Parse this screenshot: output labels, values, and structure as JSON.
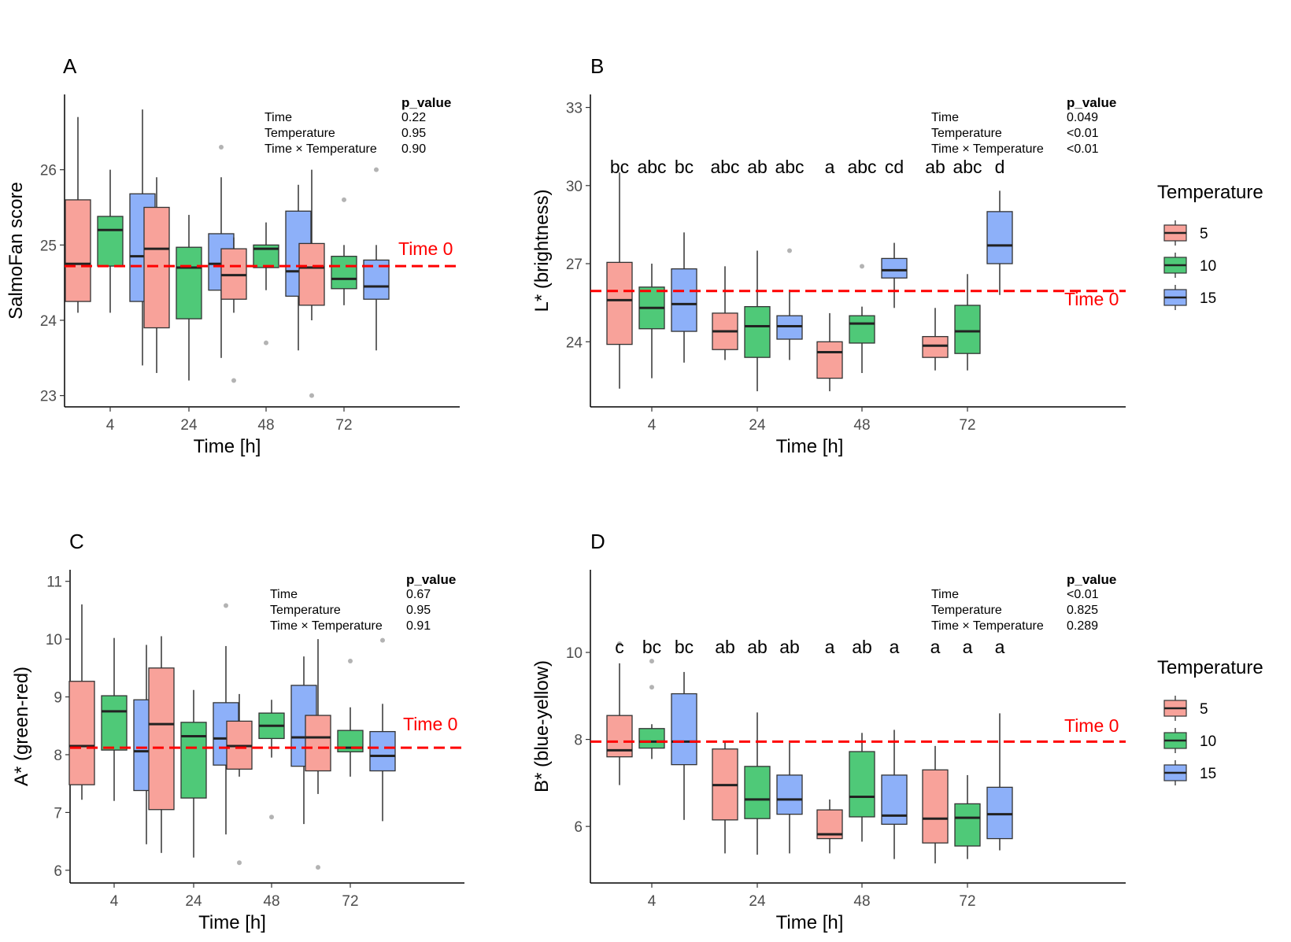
{
  "chart_data": [
    {
      "panel": "A",
      "type": "boxplot",
      "xlabel": "Time [h]",
      "ylabel": "SalmoFan score",
      "x_ticks": [
        "4",
        "24",
        "48",
        "72"
      ],
      "y_ticks": [
        23,
        24,
        25,
        26
      ],
      "ylim": [
        22.85,
        27.0
      ],
      "reference_line": {
        "label": "Time 0",
        "value": 24.72
      },
      "p_table": {
        "header": "p_value",
        "rows": [
          {
            "term": "Time",
            "p": "0.22"
          },
          {
            "term": "Temperature",
            "p": "0.95"
          },
          {
            "term": "Time × Temperature",
            "p": "0.90"
          }
        ]
      },
      "letters": [],
      "groups": [
        {
          "time": "4",
          "temp": "5",
          "lo": 24.1,
          "q1": 24.25,
          "med": 24.75,
          "q3": 25.6,
          "hi": 26.7,
          "outliers": []
        },
        {
          "time": "4",
          "temp": "10",
          "lo": 24.1,
          "q1": 24.72,
          "med": 25.2,
          "q3": 25.38,
          "hi": 26.0,
          "outliers": []
        },
        {
          "time": "4",
          "temp": "15",
          "lo": 23.4,
          "q1": 24.25,
          "med": 24.85,
          "q3": 25.68,
          "hi": 26.8,
          "outliers": []
        },
        {
          "time": "24",
          "temp": "5",
          "lo": 23.3,
          "q1": 23.9,
          "med": 24.95,
          "q3": 25.5,
          "hi": 25.9,
          "outliers": []
        },
        {
          "time": "24",
          "temp": "10",
          "lo": 23.2,
          "q1": 24.02,
          "med": 24.7,
          "q3": 24.97,
          "hi": 25.4,
          "outliers": []
        },
        {
          "time": "24",
          "temp": "15",
          "lo": 23.5,
          "q1": 24.4,
          "med": 24.75,
          "q3": 25.15,
          "hi": 25.9,
          "outliers": [
            26.3
          ]
        },
        {
          "time": "48",
          "temp": "5",
          "lo": 24.1,
          "q1": 24.28,
          "med": 24.6,
          "q3": 24.95,
          "hi": 25.1,
          "outliers": [
            23.2
          ]
        },
        {
          "time": "48",
          "temp": "10",
          "lo": 24.4,
          "q1": 24.7,
          "med": 24.95,
          "q3": 25.0,
          "hi": 25.3,
          "outliers": [
            23.7
          ]
        },
        {
          "time": "48",
          "temp": "15",
          "lo": 23.6,
          "q1": 24.32,
          "med": 24.65,
          "q3": 25.45,
          "hi": 25.8,
          "outliers": []
        },
        {
          "time": "72",
          "temp": "5",
          "lo": 24.0,
          "q1": 24.2,
          "med": 24.7,
          "q3": 25.02,
          "hi": 26.0,
          "outliers": [
            23.0
          ]
        },
        {
          "time": "72",
          "temp": "10",
          "lo": 24.2,
          "q1": 24.42,
          "med": 24.55,
          "q3": 24.85,
          "hi": 25.0,
          "outliers": [
            25.6
          ]
        },
        {
          "time": "72",
          "temp": "15",
          "lo": 23.6,
          "q1": 24.28,
          "med": 24.45,
          "q3": 24.8,
          "hi": 25.0,
          "outliers": [
            26.0
          ]
        }
      ]
    },
    {
      "panel": "B",
      "type": "boxplot",
      "xlabel": "Time [h]",
      "ylabel": "L* (brightness)",
      "x_ticks": [
        "4",
        "24",
        "48",
        "72"
      ],
      "y_ticks": [
        24,
        27,
        30,
        33
      ],
      "ylim": [
        21.5,
        33.5
      ],
      "reference_line": {
        "label": "Time 0",
        "value": 25.95
      },
      "p_table": {
        "header": "p_value",
        "rows": [
          {
            "term": "Time",
            "p": "0.049"
          },
          {
            "term": "Temperature",
            "p": "<0.01"
          },
          {
            "term": "Time × Temperature",
            "p": "<0.01"
          }
        ]
      },
      "letters": [
        "bc",
        "abc",
        "bc",
        "abc",
        "ab",
        "abc",
        "a",
        "abc",
        "cd",
        "ab",
        "abc",
        "d"
      ],
      "groups": [
        {
          "time": "4",
          "temp": "5",
          "lo": 22.2,
          "q1": 23.9,
          "med": 25.6,
          "q3": 27.05,
          "hi": 30.5,
          "outliers": []
        },
        {
          "time": "4",
          "temp": "10",
          "lo": 22.6,
          "q1": 24.5,
          "med": 25.3,
          "q3": 26.1,
          "hi": 27.0,
          "outliers": []
        },
        {
          "time": "4",
          "temp": "15",
          "lo": 23.2,
          "q1": 24.4,
          "med": 25.45,
          "q3": 26.8,
          "hi": 28.2,
          "outliers": []
        },
        {
          "time": "24",
          "temp": "5",
          "lo": 23.3,
          "q1": 23.7,
          "med": 24.4,
          "q3": 25.1,
          "hi": 26.9,
          "outliers": []
        },
        {
          "time": "24",
          "temp": "10",
          "lo": 22.1,
          "q1": 23.4,
          "med": 24.6,
          "q3": 25.35,
          "hi": 27.5,
          "outliers": []
        },
        {
          "time": "24",
          "temp": "15",
          "lo": 23.3,
          "q1": 24.1,
          "med": 24.6,
          "q3": 25.0,
          "hi": 26.0,
          "outliers": [
            27.5
          ]
        },
        {
          "time": "48",
          "temp": "5",
          "lo": 22.1,
          "q1": 22.6,
          "med": 23.6,
          "q3": 24.0,
          "hi": 25.1,
          "outliers": []
        },
        {
          "time": "48",
          "temp": "10",
          "lo": 22.8,
          "q1": 23.95,
          "med": 24.7,
          "q3": 25.0,
          "hi": 25.35,
          "outliers": [
            26.9
          ]
        },
        {
          "time": "48",
          "temp": "15",
          "lo": 25.3,
          "q1": 26.45,
          "med": 26.75,
          "q3": 27.2,
          "hi": 27.8,
          "outliers": []
        },
        {
          "time": "72",
          "temp": "5",
          "lo": 22.9,
          "q1": 23.4,
          "med": 23.85,
          "q3": 24.2,
          "hi": 25.3,
          "outliers": []
        },
        {
          "time": "72",
          "temp": "10",
          "lo": 22.9,
          "q1": 23.55,
          "med": 24.4,
          "q3": 25.4,
          "hi": 26.6,
          "outliers": []
        },
        {
          "time": "72",
          "temp": "15",
          "lo": 25.8,
          "q1": 27.0,
          "med": 27.7,
          "q3": 29.0,
          "hi": 29.8,
          "outliers": []
        }
      ]
    },
    {
      "panel": "C",
      "type": "boxplot",
      "xlabel": "Time [h]",
      "ylabel": "A* (green-red)",
      "x_ticks": [
        "4",
        "24",
        "48",
        "72"
      ],
      "y_ticks": [
        6,
        7,
        8,
        9,
        10,
        11
      ],
      "ylim": [
        5.78,
        11.2
      ],
      "reference_line": {
        "label": "Time 0",
        "value": 8.12
      },
      "p_table": {
        "header": "p_value",
        "rows": [
          {
            "term": "Time",
            "p": "0.67"
          },
          {
            "term": "Temperature",
            "p": "0.95"
          },
          {
            "term": "Time × Temperature",
            "p": "0.91"
          }
        ]
      },
      "letters": [],
      "groups": [
        {
          "time": "4",
          "temp": "5",
          "lo": 7.22,
          "q1": 7.48,
          "med": 8.15,
          "q3": 9.27,
          "hi": 10.6,
          "outliers": []
        },
        {
          "time": "4",
          "temp": "10",
          "lo": 7.2,
          "q1": 8.08,
          "med": 8.75,
          "q3": 9.02,
          "hi": 10.02,
          "outliers": []
        },
        {
          "time": "4",
          "temp": "15",
          "lo": 6.45,
          "q1": 7.38,
          "med": 8.06,
          "q3": 8.95,
          "hi": 9.9,
          "outliers": []
        },
        {
          "time": "24",
          "temp": "5",
          "lo": 6.3,
          "q1": 7.05,
          "med": 8.53,
          "q3": 9.5,
          "hi": 10.05,
          "outliers": []
        },
        {
          "time": "24",
          "temp": "10",
          "lo": 6.22,
          "q1": 7.25,
          "med": 8.32,
          "q3": 8.56,
          "hi": 9.12,
          "outliers": []
        },
        {
          "time": "24",
          "temp": "15",
          "lo": 6.62,
          "q1": 7.82,
          "med": 8.28,
          "q3": 8.9,
          "hi": 9.88,
          "outliers": [
            10.58
          ]
        },
        {
          "time": "48",
          "temp": "5",
          "lo": 7.62,
          "q1": 7.75,
          "med": 8.15,
          "q3": 8.58,
          "hi": 9.05,
          "outliers": [
            6.13
          ]
        },
        {
          "time": "48",
          "temp": "10",
          "lo": 7.95,
          "q1": 8.28,
          "med": 8.5,
          "q3": 8.72,
          "hi": 8.95,
          "outliers": [
            6.92
          ]
        },
        {
          "time": "48",
          "temp": "15",
          "lo": 6.8,
          "q1": 7.8,
          "med": 8.3,
          "q3": 9.2,
          "hi": 9.7,
          "outliers": []
        },
        {
          "time": "72",
          "temp": "5",
          "lo": 7.32,
          "q1": 7.72,
          "med": 8.3,
          "q3": 8.68,
          "hi": 10.0,
          "outliers": [
            6.05
          ]
        },
        {
          "time": "72",
          "temp": "10",
          "lo": 7.62,
          "q1": 8.05,
          "med": 8.12,
          "q3": 8.42,
          "hi": 8.82,
          "outliers": [
            9.62
          ]
        },
        {
          "time": "72",
          "temp": "15",
          "lo": 6.85,
          "q1": 7.72,
          "med": 7.98,
          "q3": 8.4,
          "hi": 8.88,
          "outliers": [
            9.98
          ]
        }
      ]
    },
    {
      "panel": "D",
      "type": "boxplot",
      "xlabel": "Time [h]",
      "ylabel": "B* (blue-yellow)",
      "x_ticks": [
        "4",
        "24",
        "48",
        "72"
      ],
      "y_ticks": [
        6,
        8,
        10
      ],
      "ylim": [
        4.7,
        11.9
      ],
      "reference_line": {
        "label": "Time 0",
        "value": 7.95
      },
      "p_table": {
        "header": "p_value",
        "rows": [
          {
            "term": "Time",
            "p": "<0.01"
          },
          {
            "term": "Temperature",
            "p": "0.825"
          },
          {
            "term": "Time × Temperature",
            "p": "0.289"
          }
        ]
      },
      "letters": [
        "c",
        "bc",
        "bc",
        "ab",
        "ab",
        "ab",
        "a",
        "ab",
        "a",
        "a",
        "a",
        "a"
      ],
      "groups": [
        {
          "time": "4",
          "temp": "5",
          "lo": 6.95,
          "q1": 7.6,
          "med": 7.75,
          "q3": 8.55,
          "hi": 9.75,
          "outliers": [
            10.2
          ]
        },
        {
          "time": "4",
          "temp": "10",
          "lo": 7.55,
          "q1": 7.8,
          "med": 7.95,
          "q3": 8.25,
          "hi": 8.35,
          "outliers": [
            9.2,
            9.8
          ]
        },
        {
          "time": "4",
          "temp": "15",
          "lo": 6.15,
          "q1": 7.42,
          "med": 7.95,
          "q3": 9.05,
          "hi": 9.55,
          "outliers": []
        },
        {
          "time": "24",
          "temp": "5",
          "lo": 5.38,
          "q1": 6.15,
          "med": 6.95,
          "q3": 7.78,
          "hi": 7.95,
          "outliers": []
        },
        {
          "time": "24",
          "temp": "10",
          "lo": 5.35,
          "q1": 6.18,
          "med": 6.62,
          "q3": 7.38,
          "hi": 8.62,
          "outliers": []
        },
        {
          "time": "24",
          "temp": "15",
          "lo": 5.38,
          "q1": 6.28,
          "med": 6.62,
          "q3": 7.18,
          "hi": 7.92,
          "outliers": []
        },
        {
          "time": "48",
          "temp": "5",
          "lo": 5.38,
          "q1": 5.72,
          "med": 5.82,
          "q3": 6.38,
          "hi": 6.62,
          "outliers": []
        },
        {
          "time": "48",
          "temp": "10",
          "lo": 5.65,
          "q1": 6.22,
          "med": 6.68,
          "q3": 7.72,
          "hi": 8.15,
          "outliers": []
        },
        {
          "time": "48",
          "temp": "15",
          "lo": 5.25,
          "q1": 6.05,
          "med": 6.25,
          "q3": 7.18,
          "hi": 8.22,
          "outliers": []
        },
        {
          "time": "72",
          "temp": "5",
          "lo": 5.15,
          "q1": 5.62,
          "med": 6.18,
          "q3": 7.3,
          "hi": 7.85,
          "outliers": []
        },
        {
          "time": "72",
          "temp": "10",
          "lo": 5.25,
          "q1": 5.55,
          "med": 6.2,
          "q3": 6.52,
          "hi": 7.18,
          "outliers": []
        },
        {
          "time": "72",
          "temp": "15",
          "lo": 5.45,
          "q1": 5.72,
          "med": 6.28,
          "q3": 6.9,
          "hi": 8.6,
          "outliers": []
        }
      ]
    }
  ],
  "legend": {
    "title": "Temperature",
    "items": [
      {
        "label": "5",
        "color": "#f8a29a"
      },
      {
        "label": "10",
        "color": "#4fc978"
      },
      {
        "label": "15",
        "color": "#8db0f9"
      }
    ]
  },
  "colors": {
    "ref_line": "#ff0000",
    "outlier": "#b3b3b3"
  }
}
